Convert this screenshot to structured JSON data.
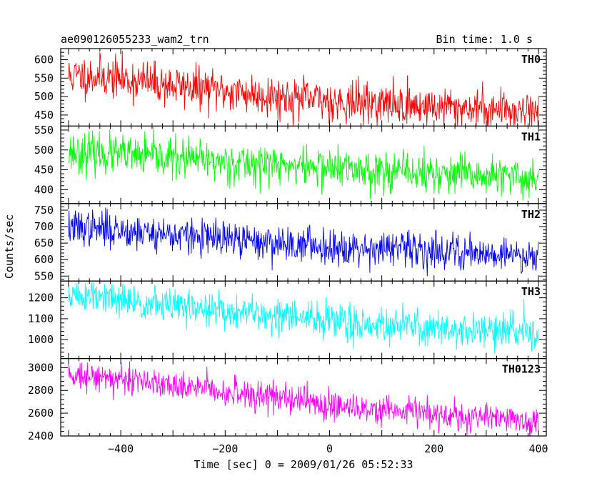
{
  "title_left": "ae090126055233_wam2_trn",
  "title_right": "Bin time: 1.0 s",
  "ylabel": "Counts/sec",
  "xlabel": "Time [sec] 0 = 2009/01/26 05:52:33",
  "chart_data": {
    "type": "line",
    "x_range": [
      -515,
      415
    ],
    "x_ticks": [
      -400,
      -200,
      0,
      200,
      400
    ],
    "x_tick_labels": [
      "−400",
      "−200",
      "0",
      "200",
      "400"
    ],
    "bin_time_s": 1.0,
    "grid": false,
    "series": [
      {
        "name": "TH0",
        "color": "#ff0000",
        "ylim": [
          420,
          630
        ],
        "yticks": [
          450,
          500,
          550,
          600
        ],
        "noise": 28,
        "seed": 11,
        "trend": [
          [
            -500,
            555
          ],
          [
            -440,
            555
          ],
          [
            -300,
            530
          ],
          [
            -100,
            500
          ],
          [
            0,
            488
          ],
          [
            200,
            472
          ],
          [
            400,
            462
          ]
        ]
      },
      {
        "name": "TH1",
        "color": "#00ff00",
        "ylim": [
          365,
          560
        ],
        "yticks": [
          400,
          450,
          500,
          550
        ],
        "noise": 25,
        "seed": 23,
        "trend": [
          [
            -500,
            495
          ],
          [
            -400,
            487
          ],
          [
            -200,
            470
          ],
          [
            0,
            455
          ],
          [
            200,
            440
          ],
          [
            400,
            427
          ]
        ]
      },
      {
        "name": "TH2",
        "color": "#0000ff",
        "ylim": [
          535,
          770
        ],
        "yticks": [
          550,
          600,
          650,
          700,
          750
        ],
        "noise": 27,
        "seed": 37,
        "trend": [
          [
            -500,
            698
          ],
          [
            -400,
            690
          ],
          [
            -200,
            660
          ],
          [
            0,
            640
          ],
          [
            200,
            628
          ],
          [
            400,
            612
          ]
        ]
      },
      {
        "name": "TH3",
        "color": "#00ffff",
        "ylim": [
          910,
          1280
        ],
        "yticks": [
          1000,
          1100,
          1200
        ],
        "noise": 42,
        "seed": 51,
        "trend": [
          [
            -500,
            1215
          ],
          [
            -400,
            1185
          ],
          [
            -200,
            1135
          ],
          [
            0,
            1090
          ],
          [
            200,
            1055
          ],
          [
            400,
            1032
          ]
        ]
      },
      {
        "name": "TH0123",
        "color": "#ff00ff",
        "ylim": [
          2400,
          3080
        ],
        "yticks": [
          2400,
          2600,
          2800,
          3000
        ],
        "noise": 65,
        "seed": 73,
        "trend": [
          [
            -500,
            2950
          ],
          [
            -400,
            2900
          ],
          [
            -200,
            2790
          ],
          [
            0,
            2680
          ],
          [
            200,
            2590
          ],
          [
            400,
            2525
          ]
        ]
      }
    ]
  }
}
